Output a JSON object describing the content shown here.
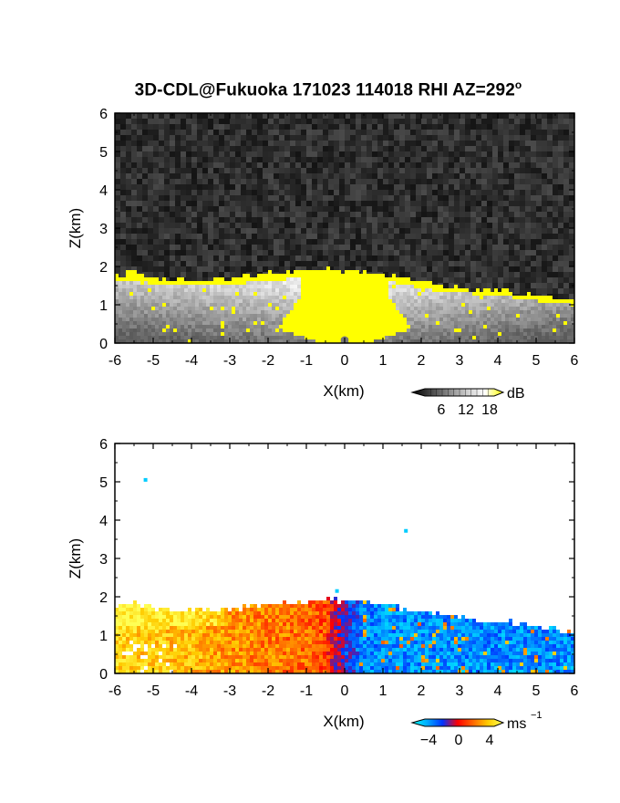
{
  "title": {
    "main": "3D-CDL@Fukuoka 171023 114018 RHI AZ=292",
    "degree_symbol": "o"
  },
  "chart_data": [
    {
      "type": "heatmap",
      "name": "reflectivity-rhi",
      "xlabel": "X(km)",
      "ylabel": "Z(km)",
      "xlim": [
        -6,
        6
      ],
      "ylim": [
        0,
        6
      ],
      "x_ticks": [
        "-6",
        "-5",
        "-4",
        "-3",
        "-2",
        "-1",
        "0",
        "1",
        "2",
        "3",
        "4",
        "5",
        "6"
      ],
      "y_ticks": [
        "0",
        "1",
        "2",
        "3",
        "4",
        "5",
        "6"
      ],
      "colorbar": {
        "unit": "dB",
        "tick_labels": [
          "6",
          "12",
          "18"
        ],
        "colors": [
          "#000000",
          "#444444",
          "#888888",
          "#cccccc",
          "#ffffff",
          "#ffff00"
        ]
      },
      "background_noise_color": "#2a2a2a",
      "signal_top_km": [
        {
          "x": -6.0,
          "z": 1.75
        },
        {
          "x": -5.5,
          "z": 1.85
        },
        {
          "x": -5.0,
          "z": 1.72
        },
        {
          "x": -4.5,
          "z": 1.68
        },
        {
          "x": -4.0,
          "z": 1.65
        },
        {
          "x": -3.5,
          "z": 1.65
        },
        {
          "x": -3.0,
          "z": 1.7
        },
        {
          "x": -2.5,
          "z": 1.75
        },
        {
          "x": -2.0,
          "z": 1.8
        },
        {
          "x": -1.5,
          "z": 1.85
        },
        {
          "x": -1.0,
          "z": 1.9
        },
        {
          "x": -0.5,
          "z": 1.95
        },
        {
          "x": 0.0,
          "z": 1.9
        },
        {
          "x": 0.5,
          "z": 1.85
        },
        {
          "x": 1.0,
          "z": 1.8
        },
        {
          "x": 1.5,
          "z": 1.72
        },
        {
          "x": 2.0,
          "z": 1.6
        },
        {
          "x": 2.5,
          "z": 1.5
        },
        {
          "x": 3.0,
          "z": 1.45
        },
        {
          "x": 3.5,
          "z": 1.42
        },
        {
          "x": 4.0,
          "z": 1.38
        },
        {
          "x": 4.5,
          "z": 1.3
        },
        {
          "x": 5.0,
          "z": 1.22
        },
        {
          "x": 5.5,
          "z": 1.15
        },
        {
          "x": 6.0,
          "z": 1.1
        }
      ]
    },
    {
      "type": "heatmap",
      "name": "doppler-velocity-rhi",
      "xlabel": "X(km)",
      "ylabel": "Z(km)",
      "xlim": [
        -6,
        6
      ],
      "ylim": [
        0,
        6
      ],
      "x_ticks": [
        "-6",
        "-5",
        "-4",
        "-3",
        "-2",
        "-1",
        "0",
        "1",
        "2",
        "3",
        "4",
        "5",
        "6"
      ],
      "y_ticks": [
        "0",
        "1",
        "2",
        "3",
        "4",
        "5",
        "6"
      ],
      "colorbar": {
        "unit": "ms",
        "unit_exponent": "−1",
        "tick_labels": [
          "−4",
          "0",
          "4"
        ],
        "colors": [
          "#00ffff",
          "#00aaff",
          "#0033ff",
          "#ff0000",
          "#ff6600",
          "#ffcc00",
          "#ffff55"
        ]
      },
      "velocity_by_x_ms": [
        {
          "x": -6.0,
          "v": 3.8
        },
        {
          "x": -5.0,
          "v": 3.5
        },
        {
          "x": -4.0,
          "v": 3.2
        },
        {
          "x": -3.0,
          "v": 2.5
        },
        {
          "x": -2.0,
          "v": 2.0
        },
        {
          "x": -1.0,
          "v": 1.8
        },
        {
          "x": -0.5,
          "v": 1.2
        },
        {
          "x": 0.0,
          "v": -1.5
        },
        {
          "x": 0.5,
          "v": -2.8
        },
        {
          "x": 1.0,
          "v": -3.0
        },
        {
          "x": 2.0,
          "v": -3.0
        },
        {
          "x": 3.0,
          "v": -3.0
        },
        {
          "x": 4.0,
          "v": -3.0
        },
        {
          "x": 5.0,
          "v": -3.0
        },
        {
          "x": 6.0,
          "v": -3.0
        }
      ],
      "outlier_points": [
        {
          "x": -5.2,
          "z": 5.05,
          "v": -4
        },
        {
          "x": 1.6,
          "z": 3.72,
          "v": -4
        },
        {
          "x": -0.2,
          "z": 2.15,
          "v": -4
        }
      ]
    }
  ]
}
